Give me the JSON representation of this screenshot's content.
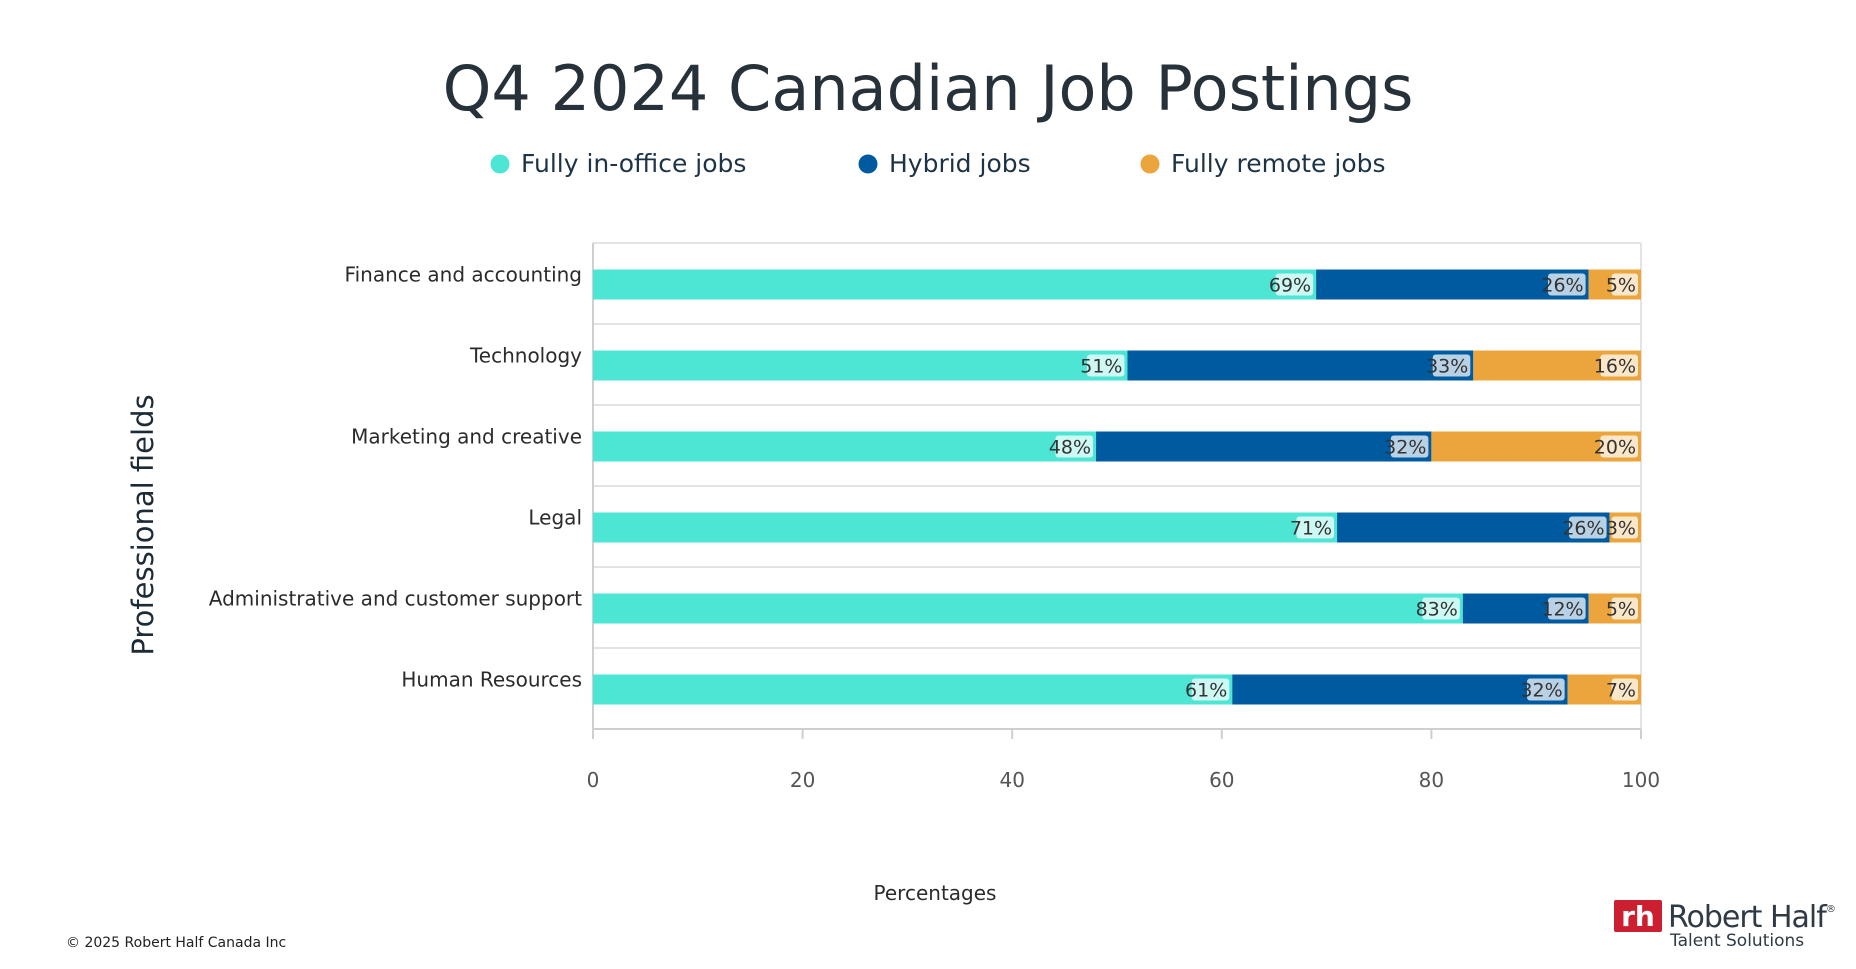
{
  "chart_data": {
    "type": "bar",
    "orientation": "horizontal",
    "stacked": true,
    "title": "Q4 2024 Canadian Job Postings",
    "xlabel": "Percentages",
    "ylabel": "Professional fields",
    "xlim": [
      0,
      100
    ],
    "xticks": [
      "0",
      "20",
      "40",
      "60",
      "80",
      "100"
    ],
    "grid": true,
    "legend_position": "top",
    "categories": [
      "Finance and accounting",
      "Technology",
      "Marketing and creative",
      "Legal",
      "Administrative and customer support",
      "Human Resources"
    ],
    "series": [
      {
        "name": "Fully in-office jobs",
        "color": "#4de6d5",
        "values": [
          69,
          51,
          48,
          71,
          83,
          61
        ],
        "labels": [
          "69%",
          "51%",
          "48%",
          "71%",
          "83%",
          "61%"
        ]
      },
      {
        "name": "Hybrid jobs",
        "color": "#005aa0",
        "values": [
          26,
          33,
          32,
          26,
          12,
          32
        ],
        "labels": [
          "26%",
          "33%",
          "32%",
          "26%",
          "12%",
          "32%"
        ]
      },
      {
        "name": "Fully remote jobs",
        "color": "#eca53c",
        "values": [
          5,
          16,
          20,
          3,
          5,
          7
        ],
        "labels": [
          "5%",
          "16%",
          "20%",
          "3%",
          "5%",
          "7%"
        ]
      }
    ]
  },
  "footer": {
    "copyright": "© 2025 Robert Half Canada Inc"
  },
  "logo": {
    "mark": "rh",
    "name": "Robert Half",
    "registered": "®",
    "tagline": "Talent Solutions",
    "mark_color": "#cc1f2f"
  }
}
